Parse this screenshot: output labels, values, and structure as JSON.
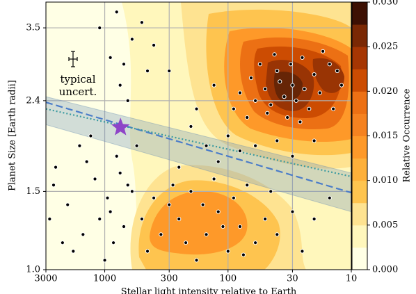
{
  "chart_data": {
    "type": "scatter",
    "xlabel": "Stellar light intensity relative to Earth",
    "ylabel": "Planet Size [Earth radii]",
    "annotation": [
      "typical",
      "uncert."
    ],
    "xscale": "log",
    "yscale": "log",
    "xlim": [
      3000,
      10
    ],
    "ylim": [
      1.0,
      4.0
    ],
    "xticks": [
      3000,
      1000,
      300,
      100,
      30,
      10
    ],
    "yticks": [
      {
        "value": 1.0,
        "label": "1.0"
      },
      1.5,
      2.4,
      3.5
    ],
    "grid": true,
    "points": {
      "color": "#000000",
      "x": [
        15,
        20,
        25,
        30,
        35,
        40,
        45,
        50,
        18,
        22,
        28,
        33,
        38,
        55,
        60,
        12,
        14,
        17,
        24,
        42,
        65,
        80,
        90,
        70,
        26,
        31,
        48,
        13,
        100,
        150,
        200,
        120,
        80,
        250,
        60,
        40,
        30,
        20,
        180,
        130,
        300,
        400,
        300,
        250,
        200,
        150,
        120,
        100,
        90,
        80,
        70,
        60,
        50,
        45,
        350,
        400,
        180,
        220,
        280,
        130,
        110,
        160,
        75,
        40,
        30,
        25,
        20,
        15,
        500,
        450,
        600,
        2500,
        2000,
        1500,
        1200,
        900,
        800,
        700,
        1000,
        2800,
        1800,
        650,
        750,
        900,
        1100,
        600,
        700,
        1300,
        1600,
        2200,
        950,
        850,
        750,
        1100,
        550,
        650,
        500,
        450,
        800,
        1400,
        2600
      ],
      "y": [
        2.9,
        2.75,
        3.0,
        2.6,
        2.45,
        2.8,
        2.35,
        2.55,
        2.5,
        2.3,
        2.4,
        2.2,
        2.65,
        2.9,
        2.4,
        2.6,
        2.3,
        3.1,
        2.55,
        3.05,
        2.7,
        2.5,
        2.3,
        2.2,
        2.15,
        2.9,
        2.25,
        2.8,
        2.0,
        1.9,
        2.1,
        1.75,
        1.85,
        1.7,
        1.9,
        1.95,
        1.8,
        1.95,
        2.3,
        2.6,
        2.8,
        3.2,
        1.4,
        1.3,
        1.5,
        1.2,
        1.35,
        1.1,
        1.45,
        1.25,
        1.55,
        1.15,
        1.3,
        1.5,
        1.2,
        1.45,
        1.05,
        1.15,
        1.55,
        1.6,
        1.25,
        1.4,
        1.08,
        1.2,
        1.35,
        1.1,
        1.3,
        1.45,
        1.3,
        1.1,
        1.5,
        1.7,
        1.4,
        1.2,
        1.6,
        1.35,
        1.8,
        1.25,
        1.05,
        1.3,
        1.1,
        1.55,
        2.6,
        3.0,
        3.5,
        3.3,
        2.9,
        2.0,
        1.9,
        1.15,
        1.45,
        1.15,
        1.65,
        1.3,
        1.9,
        2.4,
        3.6,
        2.8,
        3.8,
        1.75,
        1.55
      ]
    },
    "star": {
      "x": 745,
      "y": 2.09,
      "color": "#8e44c8"
    },
    "band": {
      "x": [
        3000,
        10
      ],
      "y_low": [
        2.12,
        1.35
      ],
      "y_high": [
        2.45,
        1.65
      ],
      "color": "#6a8fb5"
    },
    "fits": [
      {
        "x": [
          3000,
          10
        ],
        "y": [
          2.38,
          1.49
        ],
        "color": "#4a7cc9",
        "dash": "10 5"
      },
      {
        "x": [
          3000,
          10
        ],
        "y": [
          2.3,
          1.62
        ],
        "color": "#3a9aa0",
        "dash": "2 3"
      }
    ],
    "colorbar": {
      "label": "Relative Occurrence",
      "ylim": [
        0,
        0.03
      ],
      "ticks": [
        {
          "value": 0,
          "label": "0.000"
        },
        {
          "value": 0.005,
          "label": "0.005"
        },
        {
          "value": 0.01,
          "label": "0.010"
        },
        {
          "value": 0.015,
          "label": "0.015"
        },
        {
          "value": 0.02,
          "label": "0.020"
        },
        {
          "value": 0.025,
          "label": "0.025"
        },
        {
          "value": 0.03,
          "label": "0.030"
        }
      ],
      "colors": [
        "#ffffe5",
        "#fff7bc",
        "#fee391",
        "#fec44f",
        "#feb03a",
        "#fe9929",
        "#f58220",
        "#ec7014",
        "#cc4c02",
        "#a63603",
        "#7a2804",
        "#3d1003"
      ]
    }
  }
}
